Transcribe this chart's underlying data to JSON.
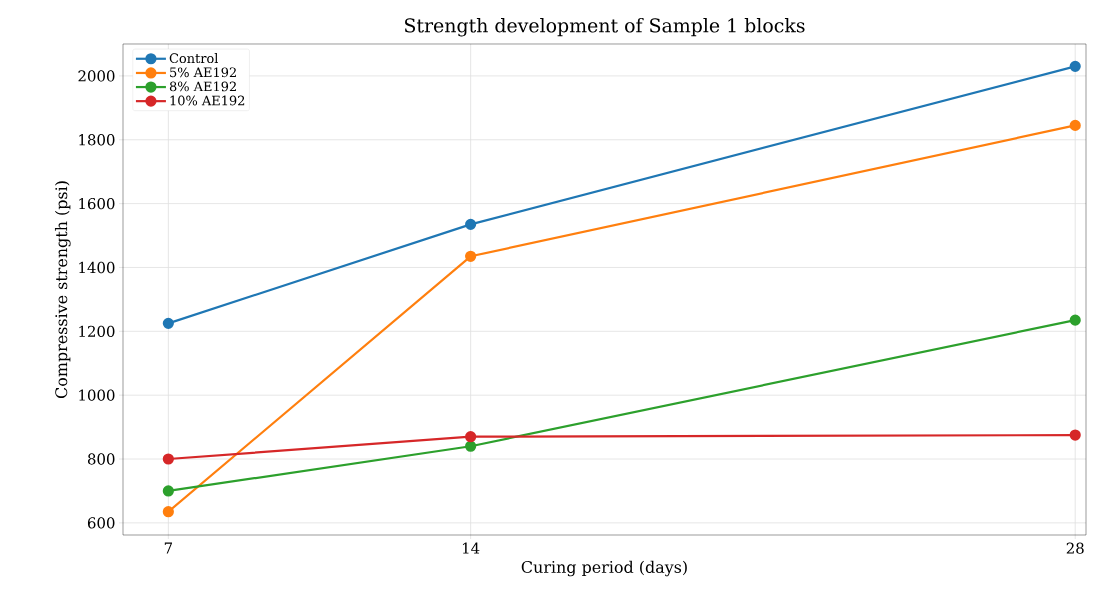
{
  "chart_data": {
    "type": "line",
    "title": "Strength development of Sample 1 blocks",
    "xlabel": "Curing period (days)",
    "ylabel": "Compressive strength (psi)",
    "x": [
      7,
      14,
      28
    ],
    "series": [
      {
        "name": "Control",
        "color": "#1f77b4",
        "values": [
          1225,
          1535,
          2030
        ]
      },
      {
        "name": "5% AE192",
        "color": "#ff7f0e",
        "values": [
          635,
          1435,
          1845
        ]
      },
      {
        "name": "8% AE192",
        "color": "#2ca02c",
        "values": [
          700,
          840,
          1235
        ]
      },
      {
        "name": "10% AE192",
        "color": "#d62728",
        "values": [
          800,
          870,
          875
        ]
      }
    ],
    "xlim": [
      5.95,
      28.25
    ],
    "ylim": [
      562,
      2100
    ],
    "xticks": [
      7,
      14,
      28
    ],
    "yticks": [
      600,
      800,
      1000,
      1200,
      1400,
      1600,
      1800,
      2000
    ],
    "grid": true,
    "legend": "top left",
    "marker": "circle",
    "line_style": "solid"
  }
}
